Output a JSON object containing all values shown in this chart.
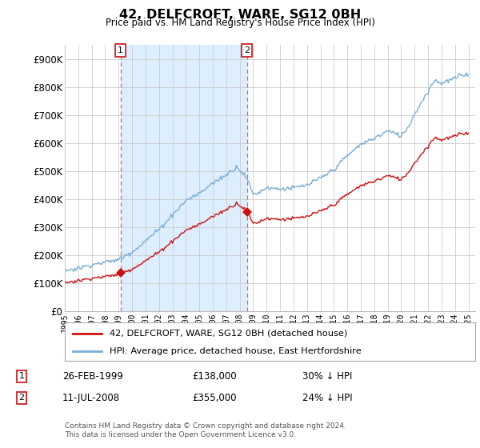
{
  "title": "42, DELFCROFT, WARE, SG12 0BH",
  "subtitle": "Price paid vs. HM Land Registry's House Price Index (HPI)",
  "ylim": [
    0,
    950000
  ],
  "yticks": [
    0,
    100000,
    200000,
    300000,
    400000,
    500000,
    600000,
    700000,
    800000,
    900000
  ],
  "ytick_labels": [
    "£0",
    "£100K",
    "£200K",
    "£300K",
    "£400K",
    "£500K",
    "£600K",
    "£700K",
    "£800K",
    "£900K"
  ],
  "hpi_color": "#7aaed4",
  "price_color": "#cc1111",
  "vline_color": "#dd6666",
  "shade_color": "#ddeeff",
  "sale1_year": 1999.147,
  "sale1_price": 138000,
  "sale2_year": 2008.527,
  "sale2_price": 355000,
  "legend_label1": "42, DELFCROFT, WARE, SG12 0BH (detached house)",
  "legend_label2": "HPI: Average price, detached house, East Hertfordshire",
  "footnote": "Contains HM Land Registry data © Crown copyright and database right 2024.\nThis data is licensed under the Open Government Licence v3.0.",
  "background_color": "#ffffff",
  "grid_color": "#cccccc",
  "table_row1": [
    "1",
    "26-FEB-1999",
    "£138,000",
    "30% ↓ HPI"
  ],
  "table_row2": [
    "2",
    "11-JUL-2008",
    "£355,000",
    "24% ↓ HPI"
  ]
}
